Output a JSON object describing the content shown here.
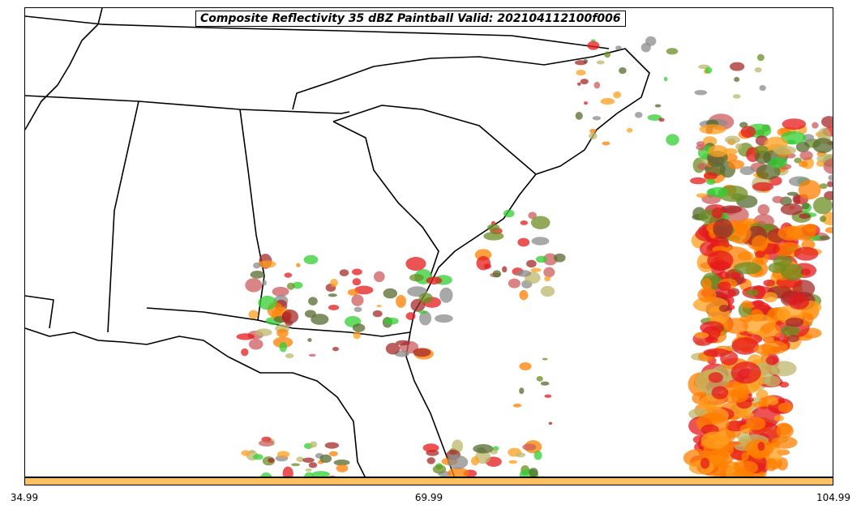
{
  "title": "Composite Reflectivity 35 dBZ Paintball Valid: 202104112100f006",
  "colorbar": {
    "color": "#ffc060",
    "ticks": [
      "34.99",
      "69.99",
      "104.99"
    ]
  },
  "legend_colors": [
    "#e41a1c",
    "#ff7f00",
    "#ff9f1c",
    "#a52a2a",
    "#6b8e23",
    "#32cd32",
    "#bdb76b",
    "#556b2f",
    "#8b8b8b",
    "#cd5c5c"
  ]
}
